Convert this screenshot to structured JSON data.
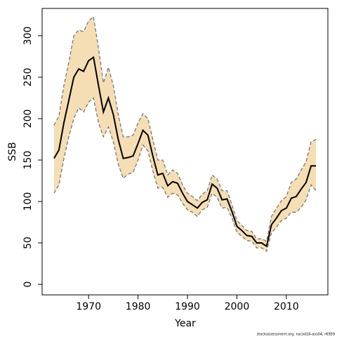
{
  "chart_data": {
    "type": "line",
    "x_label": "Year",
    "y_label": "SSB",
    "footer": "stockassessment.org, nscod16-ass04, r6959",
    "x": [
      1963,
      1964,
      1965,
      1966,
      1967,
      1968,
      1969,
      1970,
      1971,
      1972,
      1973,
      1974,
      1975,
      1976,
      1977,
      1978,
      1979,
      1980,
      1981,
      1982,
      1983,
      1984,
      1985,
      1986,
      1987,
      1988,
      1989,
      1990,
      1991,
      1992,
      1993,
      1994,
      1995,
      1996,
      1997,
      1998,
      1999,
      2000,
      2001,
      2002,
      2003,
      2004,
      2005,
      2006,
      2007,
      2008,
      2009,
      2010,
      2011,
      2012,
      2013,
      2014,
      2015,
      2016
    ],
    "values": [
      152,
      162,
      195,
      222,
      250,
      260,
      257,
      270,
      274,
      240,
      208,
      225,
      205,
      175,
      152,
      153,
      155,
      170,
      186,
      180,
      155,
      132,
      134,
      119,
      124,
      122,
      110,
      100,
      96,
      92,
      99,
      102,
      121,
      116,
      102,
      103,
      88,
      70,
      65,
      59,
      58,
      50,
      50,
      46,
      72,
      80,
      89,
      92,
      104,
      106,
      115,
      123,
      143,
      143
    ],
    "upper": [
      192,
      203,
      240,
      268,
      300,
      307,
      305,
      318,
      323,
      285,
      243,
      262,
      240,
      205,
      178,
      178,
      180,
      195,
      206,
      200,
      175,
      150,
      150,
      132,
      138,
      134,
      120,
      110,
      106,
      101,
      109,
      113,
      132,
      127,
      113,
      113,
      96,
      77,
      71,
      65,
      64,
      55,
      55,
      52,
      82,
      92,
      101,
      106,
      123,
      127,
      138,
      148,
      172,
      175
    ],
    "lower": [
      110,
      120,
      152,
      178,
      200,
      213,
      208,
      220,
      225,
      195,
      178,
      190,
      172,
      145,
      128,
      133,
      135,
      150,
      168,
      161,
      137,
      116,
      117,
      105,
      110,
      108,
      98,
      90,
      87,
      82,
      90,
      93,
      110,
      105,
      92,
      93,
      80,
      63,
      58,
      53,
      52,
      44,
      44,
      40,
      62,
      69,
      77,
      80,
      87,
      87,
      93,
      102,
      120,
      113
    ],
    "line_color": "#000000",
    "band_color": "#f5deb3",
    "band_edge_color": "#777777",
    "xlim": [
      1960.6,
      2018.4
    ],
    "ylim": [
      -12.7,
      333
    ],
    "xticks": [
      1970,
      1980,
      1990,
      2000,
      2010
    ],
    "yticks": [
      0,
      50,
      100,
      150,
      200,
      250,
      300
    ]
  }
}
